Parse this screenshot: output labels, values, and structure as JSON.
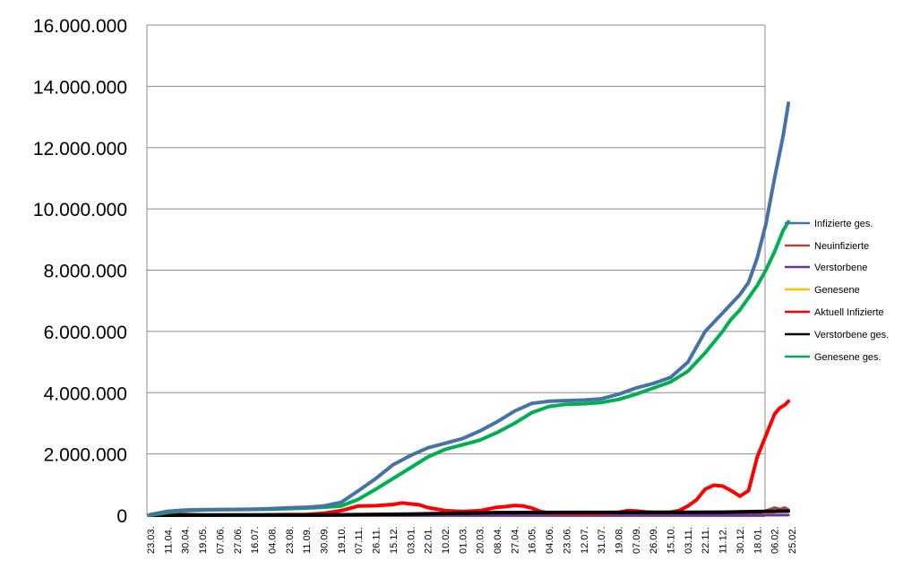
{
  "chart_data": {
    "type": "line",
    "title": "",
    "xlabel": "",
    "ylabel": "",
    "ylim": [
      0,
      16000000
    ],
    "yticks": [
      0,
      2000000,
      4000000,
      6000000,
      8000000,
      10000000,
      12000000,
      14000000,
      16000000
    ],
    "ytick_labels": [
      "0",
      "2.000.000",
      "4.000.000",
      "6.000.000",
      "8.000.000",
      "10.000.000",
      "12.000.000",
      "14.000.000",
      "16.000.000"
    ],
    "categories": [
      "23.03.",
      "11.04.",
      "30.04.",
      "19.05.",
      "07.06.",
      "27.06.",
      "16.07.",
      "04.08.",
      "23.08.",
      "11.09.",
      "30.09.",
      "19.10.",
      "07.11.",
      "26.11.",
      "15.12.",
      "03.01.",
      "22.01.",
      "10.02.",
      "01.03.",
      "20.03.",
      "08.04.",
      "27.04.",
      "16.05.",
      "04.06.",
      "23.06.",
      "12.07.",
      "31.07.",
      "19.08.",
      "07.09.",
      "26.09.",
      "15.10.",
      "03.11.",
      "22.11.",
      "11.12.",
      "30.12.",
      "18.01.",
      "06.02.",
      "25.02."
    ],
    "grid": "horizontal",
    "legend_position": "right",
    "series": [
      {
        "name": "Infizierte ges.",
        "color": "#4572A7",
        "x": [
          0,
          1,
          2,
          3,
          4,
          5,
          6,
          7,
          8,
          9,
          10,
          11,
          12,
          13,
          14,
          15,
          16,
          17,
          18,
          19,
          20,
          21,
          22,
          23,
          24,
          25,
          26,
          27,
          28,
          29,
          30,
          31,
          32,
          33,
          33.5,
          34,
          34.5,
          35,
          35.5,
          36,
          36.5,
          36.8
        ],
        "values": [
          20000,
          130000,
          170000,
          180000,
          185000,
          190000,
          200000,
          215000,
          240000,
          260000,
          300000,
          420000,
          800000,
          1200000,
          1650000,
          1950000,
          2200000,
          2350000,
          2500000,
          2750000,
          3050000,
          3400000,
          3650000,
          3720000,
          3740000,
          3760000,
          3800000,
          3950000,
          4150000,
          4300000,
          4500000,
          5000000,
          6000000,
          6600000,
          6900000,
          7200000,
          7600000,
          8400000,
          9500000,
          11000000,
          12400000,
          13450000
        ]
      },
      {
        "name": "Neuinfizierte",
        "color": "#AA4643",
        "x": [
          0,
          5,
          10,
          15,
          20,
          25,
          30,
          33,
          35,
          35.5,
          36,
          36.3,
          36.6,
          36.8
        ],
        "values": [
          4000,
          800,
          2000,
          20000,
          18000,
          1000,
          12000,
          25000,
          40000,
          150000,
          250000,
          200000,
          250000,
          180000
        ]
      },
      {
        "name": "Verstorbene",
        "color": "#7030A0",
        "x": [
          0,
          10,
          20,
          30,
          36.8
        ],
        "values": [
          100,
          50,
          500,
          200,
          1500
        ]
      },
      {
        "name": "Genesene",
        "color": "#FFC000",
        "x": [
          0,
          10,
          20,
          30,
          33,
          35,
          36,
          36.8
        ],
        "values": [
          2000,
          1500,
          15000,
          10000,
          20000,
          30000,
          100000,
          180000
        ]
      },
      {
        "name": "Aktuell Infizierte",
        "color": "#FF0000",
        "x": [
          0,
          1,
          2,
          3,
          4,
          5,
          6,
          7,
          8,
          9,
          10,
          11,
          12,
          13,
          14,
          14.5,
          15,
          15.5,
          16,
          17,
          18,
          19,
          20,
          20.5,
          21,
          21.5,
          22,
          22.5,
          23,
          24,
          25,
          26,
          27,
          27.5,
          28,
          28.5,
          29,
          30,
          30.5,
          31,
          31.5,
          32,
          32.5,
          33,
          33.5,
          34,
          34.5,
          35,
          35.5,
          36,
          36.3,
          36.6,
          36.8
        ],
        "values": [
          20000,
          40000,
          20000,
          10000,
          8000,
          9000,
          10000,
          15000,
          20000,
          25000,
          60000,
          150000,
          300000,
          310000,
          350000,
          400000,
          370000,
          340000,
          250000,
          150000,
          120000,
          150000,
          260000,
          280000,
          320000,
          300000,
          230000,
          120000,
          70000,
          60000,
          55000,
          60000,
          90000,
          150000,
          140000,
          110000,
          90000,
          100000,
          150000,
          300000,
          500000,
          850000,
          980000,
          950000,
          800000,
          620000,
          800000,
          1900000,
          2600000,
          3300000,
          3500000,
          3600000,
          3720000
        ]
      },
      {
        "name": "Verstorbene ges.",
        "color": "#000000",
        "x": [
          0,
          5,
          10,
          15,
          20,
          25,
          30,
          33,
          35,
          36.8
        ],
        "values": [
          0,
          9000,
          10000,
          35000,
          85000,
          92000,
          95000,
          100000,
          120000,
          135000
        ]
      },
      {
        "name": "Genesene ges.",
        "color": "#00B050",
        "x": [
          0,
          1,
          2,
          3,
          4,
          5,
          6,
          7,
          8,
          9,
          10,
          11,
          12,
          13,
          14,
          15,
          16,
          17,
          18,
          19,
          20,
          21,
          22,
          23,
          24,
          25,
          26,
          27,
          28,
          29,
          30,
          31,
          32,
          33,
          33.5,
          34,
          34.5,
          35,
          35.5,
          36,
          36.5,
          36.8
        ],
        "values": [
          0,
          90000,
          150000,
          170000,
          180000,
          185000,
          190000,
          200000,
          215000,
          235000,
          260000,
          300000,
          520000,
          850000,
          1200000,
          1550000,
          1900000,
          2150000,
          2300000,
          2450000,
          2700000,
          3000000,
          3350000,
          3550000,
          3620000,
          3640000,
          3680000,
          3780000,
          3950000,
          4150000,
          4350000,
          4700000,
          5300000,
          6000000,
          6400000,
          6700000,
          7100000,
          7500000,
          8000000,
          8600000,
          9300000,
          9580000
        ]
      }
    ]
  }
}
